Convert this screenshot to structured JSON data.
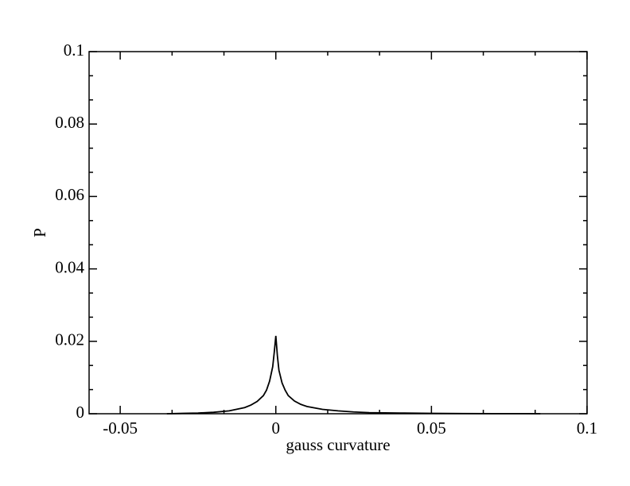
{
  "chart_data": {
    "type": "line",
    "xlabel": "gauss curvature",
    "ylabel": "P",
    "xlim": [
      -0.06,
      0.1
    ],
    "ylim": [
      0,
      0.1
    ],
    "xticks": [
      -0.05,
      0,
      0.05,
      0.1
    ],
    "yticks": [
      0,
      0.02,
      0.04,
      0.06,
      0.08,
      0.1
    ],
    "minor_ticks": 2,
    "mirror_ticks": true,
    "grid": false,
    "series": [
      {
        "color": "#000000",
        "x": [
          -0.035,
          -0.03,
          -0.025,
          -0.02,
          -0.015,
          -0.01,
          -0.008,
          -0.006,
          -0.004,
          -0.003,
          -0.002,
          -0.001,
          -0.0005,
          0,
          0.0005,
          0.001,
          0.002,
          0.003,
          0.004,
          0.006,
          0.008,
          0.01,
          0.015,
          0.02,
          0.025,
          0.03,
          0.04,
          0.05,
          0.06,
          0.07,
          0.08,
          0.085
        ],
        "values": [
          0,
          0.0001,
          0.0002,
          0.0004,
          0.0008,
          0.0017,
          0.0024,
          0.0034,
          0.005,
          0.0065,
          0.009,
          0.013,
          0.017,
          0.0215,
          0.016,
          0.012,
          0.0085,
          0.0065,
          0.005,
          0.0035,
          0.0026,
          0.002,
          0.0012,
          0.0008,
          0.0005,
          0.0003,
          0.0002,
          0.0001,
          5e-05,
          3e-05,
          2e-05,
          0
        ]
      }
    ]
  }
}
